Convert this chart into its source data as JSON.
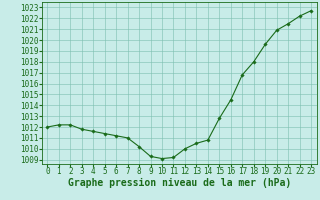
{
  "x": [
    0,
    1,
    2,
    3,
    4,
    5,
    6,
    7,
    8,
    9,
    10,
    11,
    12,
    13,
    14,
    15,
    16,
    17,
    18,
    19,
    20,
    21,
    22,
    23
  ],
  "y": [
    1012.0,
    1012.2,
    1012.2,
    1011.8,
    1011.6,
    1011.4,
    1011.2,
    1011.0,
    1010.2,
    1009.3,
    1009.1,
    1009.2,
    1010.0,
    1010.5,
    1010.8,
    1012.8,
    1014.5,
    1016.8,
    1018.0,
    1019.6,
    1020.9,
    1021.5,
    1022.2,
    1022.7
  ],
  "line_color": "#1a6b1a",
  "marker": "D",
  "marker_size": 1.8,
  "line_width": 0.8,
  "bg_color": "#c8ece8",
  "grid_color": "#7bbfb0",
  "ylabel_ticks": [
    1009,
    1010,
    1011,
    1012,
    1013,
    1014,
    1015,
    1016,
    1017,
    1018,
    1019,
    1020,
    1021,
    1022,
    1023
  ],
  "xlabel": "Graphe pression niveau de la mer (hPa)",
  "xlabel_fontsize": 7,
  "tick_fontsize": 5.5,
  "ylim": [
    1008.6,
    1023.5
  ],
  "xlim": [
    -0.5,
    23.5
  ]
}
